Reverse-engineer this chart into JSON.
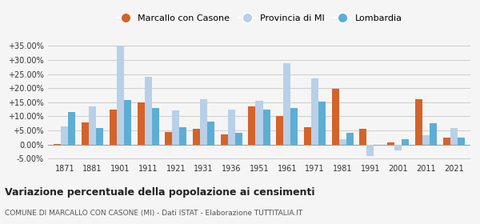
{
  "years": [
    1871,
    1881,
    1901,
    1911,
    1921,
    1931,
    1936,
    1951,
    1961,
    1971,
    1981,
    1991,
    2001,
    2011,
    2021
  ],
  "marcallo": [
    0.2,
    7.8,
    12.5,
    15.0,
    4.5,
    5.5,
    3.5,
    13.5,
    10.2,
    6.2,
    19.8,
    5.5,
    0.8,
    16.0,
    2.5
  ],
  "provincia": [
    6.5,
    13.5,
    35.0,
    24.0,
    12.0,
    16.2,
    12.5,
    15.5,
    28.8,
    23.5,
    1.8,
    -4.2,
    -2.2,
    3.2,
    5.8
  ],
  "lombardia": [
    11.5,
    5.8,
    15.8,
    13.0,
    6.0,
    8.0,
    4.2,
    12.5,
    13.0,
    15.2,
    4.0,
    -0.5,
    1.8,
    7.5,
    2.5
  ],
  "marcallo_color": "#d4632a",
  "provincia_color": "#b8d0e8",
  "lombardia_color": "#5daed4",
  "title": "Variazione percentuale della popolazione ai censimenti",
  "subtitle": "COMUNE DI MARCALLO CON CASONE (MI) - Dati ISTAT - Elaborazione TUTTITALIA.IT",
  "legend_labels": [
    "Marcallo con Casone",
    "Provincia di MI",
    "Lombardia"
  ],
  "ylim": [
    -6,
    37
  ],
  "yticks": [
    -5.0,
    0.0,
    5.0,
    10.0,
    15.0,
    20.0,
    25.0,
    30.0,
    35.0
  ],
  "ytick_labels": [
    "-5.00%",
    "0.00%",
    "+5.00%",
    "+10.00%",
    "+15.00%",
    "+20.00%",
    "+25.00%",
    "+30.00%",
    "+35.00%"
  ],
  "background_color": "#f5f5f5",
  "grid_color": "#cccccc"
}
